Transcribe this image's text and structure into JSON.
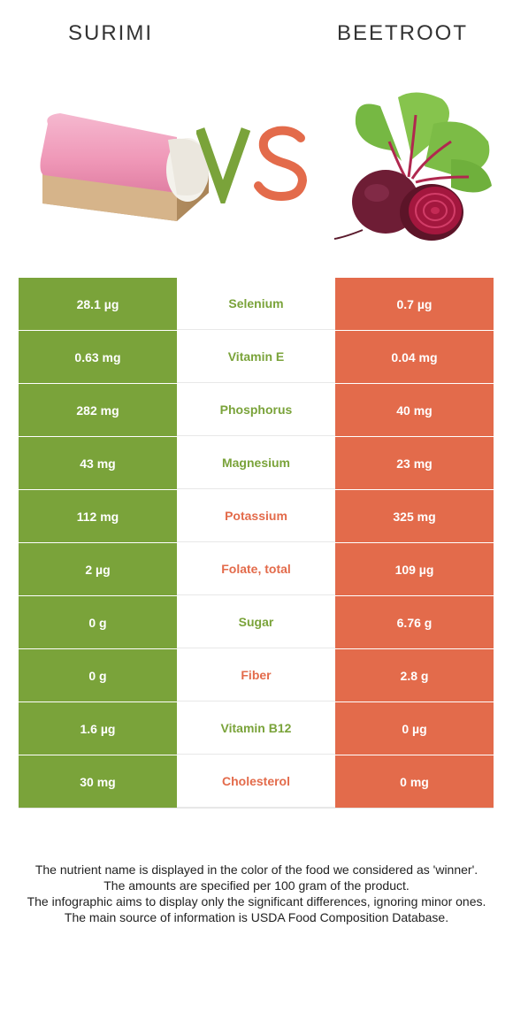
{
  "header": {
    "left_food": "SURIMI",
    "right_food": "BEETROOT"
  },
  "colors": {
    "winner_left": "#7aa33a",
    "winner_right": "#e36b4b"
  },
  "rows": [
    {
      "nutrient": "Selenium",
      "left": "28.1 µg",
      "right": "0.7 µg",
      "winner": "left"
    },
    {
      "nutrient": "Vitamin E",
      "left": "0.63 mg",
      "right": "0.04 mg",
      "winner": "left"
    },
    {
      "nutrient": "Phosphorus",
      "left": "282 mg",
      "right": "40 mg",
      "winner": "left"
    },
    {
      "nutrient": "Magnesium",
      "left": "43 mg",
      "right": "23 mg",
      "winner": "left"
    },
    {
      "nutrient": "Potassium",
      "left": "112 mg",
      "right": "325 mg",
      "winner": "right"
    },
    {
      "nutrient": "Folate, total",
      "left": "2 µg",
      "right": "109 µg",
      "winner": "right"
    },
    {
      "nutrient": "Sugar",
      "left": "0 g",
      "right": "6.76 g",
      "winner": "left"
    },
    {
      "nutrient": "Fiber",
      "left": "0 g",
      "right": "2.8 g",
      "winner": "right"
    },
    {
      "nutrient": "Vitamin B12",
      "left": "1.6 µg",
      "right": "0 µg",
      "winner": "left"
    },
    {
      "nutrient": "Cholesterol",
      "left": "30 mg",
      "right": "0 mg",
      "winner": "right"
    }
  ],
  "footnote": [
    "The nutrient name is displayed in the color of the food we considered as 'winner'.",
    "The amounts are specified per 100 gram of the product.",
    "The infographic aims to display only the significant differences, ignoring minor ones.",
    "The main source of information is USDA Food Composition Database."
  ]
}
